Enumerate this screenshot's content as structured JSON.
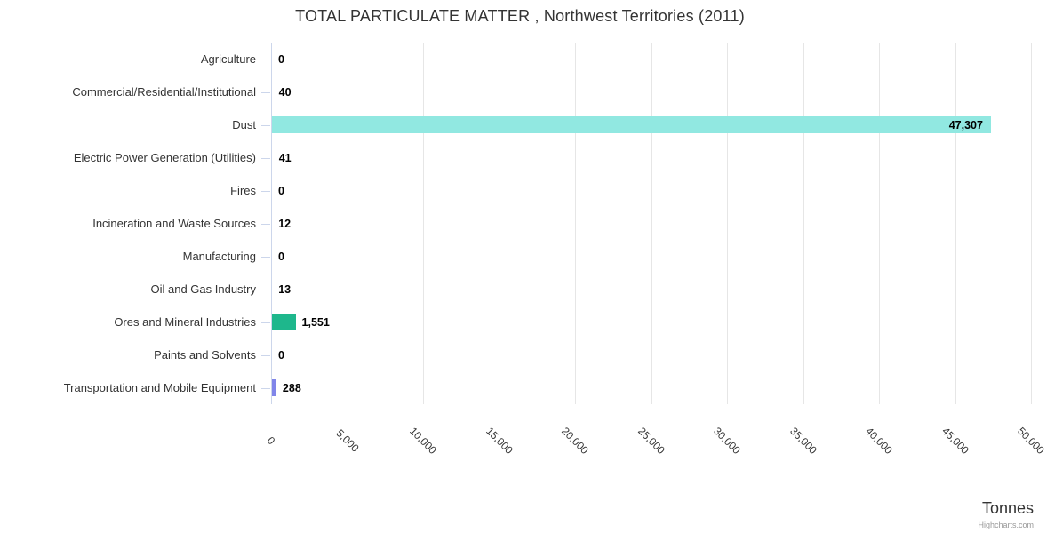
{
  "chart": {
    "title": "TOTAL PARTICULATE MATTER , Northwest Territories (2011)",
    "axis_title": "Tonnes",
    "credit": "Highcharts.com"
  },
  "chart_data": {
    "type": "bar",
    "orientation": "horizontal",
    "title": "TOTAL PARTICULATE MATTER , Northwest Territories (2011)",
    "categories": [
      "Agriculture",
      "Commercial/Residential/Institutional",
      "Dust",
      "Electric Power Generation (Utilities)",
      "Fires",
      "Incineration and Waste Sources",
      "Manufacturing",
      "Oil and Gas Industry",
      "Ores and Mineral Industries",
      "Paints and Solvents",
      "Transportation and Mobile Equipment"
    ],
    "values": [
      0,
      40,
      47307,
      41,
      0,
      12,
      0,
      13,
      1551,
      0,
      288
    ],
    "value_labels": [
      "0",
      "40",
      "47,307",
      "41",
      "0",
      "12",
      "0",
      "13",
      "1,551",
      "0",
      "288"
    ],
    "bar_colors": [
      null,
      null,
      "#91e8e1",
      null,
      null,
      null,
      null,
      null,
      "#1eb78c",
      null,
      "#8085e9"
    ],
    "xlim": [
      0,
      50000
    ],
    "x_tick_values": [
      0,
      5000,
      10000,
      15000,
      20000,
      25000,
      30000,
      35000,
      40000,
      45000,
      50000
    ],
    "x_tick_labels": [
      "0",
      "5,000",
      "10,000",
      "15,000",
      "20,000",
      "25,000",
      "30,000",
      "35,000",
      "40,000",
      "45,000",
      "50,000"
    ],
    "xlabel": "Tonnes",
    "ylabel": "",
    "grid": true,
    "legend": false,
    "colors": {
      "grid": "#e6e6e6",
      "axis": "#ccd6eb",
      "label_text": "#333333",
      "value_text": "#000000",
      "credit_text": "#999999"
    }
  }
}
